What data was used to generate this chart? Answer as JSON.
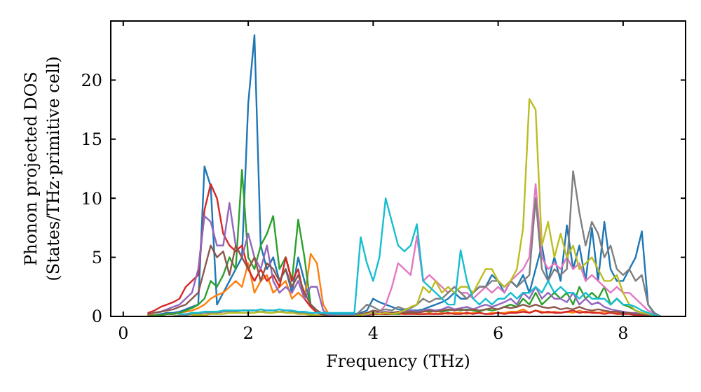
{
  "chart_data": {
    "type": "line",
    "xlabel": "Frequency (THz)",
    "ylabel": "Phonon projected DOS\n(States/THz·primitive cell)",
    "xlim": [
      -0.2,
      9
    ],
    "ylim": [
      0,
      25
    ],
    "xticks": [
      0,
      2,
      4,
      6,
      8
    ],
    "yticks": [
      0,
      5,
      10,
      15,
      20
    ],
    "grid": false,
    "line_style": "solid",
    "x": [
      0.4,
      0.5,
      0.6,
      0.7,
      0.8,
      0.9,
      1,
      1.1,
      1.2,
      1.3,
      1.4,
      1.5,
      1.6,
      1.7,
      1.8,
      1.9,
      2,
      2.1,
      2.2,
      2.3,
      2.4,
      2.5,
      2.6,
      2.7,
      2.8,
      2.9,
      3,
      3.1,
      3.2,
      3.3,
      3.4,
      3.5,
      3.6,
      3.7,
      3.8,
      3.9,
      4,
      4.1,
      4.2,
      4.3,
      4.4,
      4.5,
      4.6,
      4.7,
      4.8,
      4.9,
      5,
      5.1,
      5.2,
      5.3,
      5.4,
      5.5,
      5.6,
      5.7,
      5.8,
      5.9,
      6,
      6.1,
      6.2,
      6.3,
      6.4,
      6.5,
      6.6,
      6.7,
      6.8,
      6.9,
      7,
      7.1,
      7.2,
      7.3,
      7.4,
      7.5,
      7.6,
      7.7,
      7.8,
      7.9,
      8,
      8.1,
      8.2,
      8.3,
      8.4,
      8.5,
      8.6
    ],
    "series": [
      {
        "color": "#1f77b4",
        "values": [
          0.1,
          0.1,
          0.2,
          0.3,
          0.3,
          0.4,
          0.6,
          0.8,
          1,
          12.7,
          11,
          1,
          2,
          3,
          4,
          5,
          18,
          23.8,
          6,
          4,
          5,
          3,
          4,
          2,
          5,
          3,
          1,
          0.5,
          0.2,
          0.2,
          0.2,
          0.2,
          0.2,
          0.2,
          0.3,
          0.5,
          1.5,
          1.2,
          1,
          0.8,
          0.6,
          0.5,
          0.5,
          0.5,
          0.6,
          0.8,
          1,
          1.2,
          1.5,
          2,
          1.5,
          1.5,
          2,
          2.5,
          2.5,
          3.5,
          3,
          2,
          3,
          2.5,
          3.5,
          2,
          4,
          6,
          3,
          5,
          3,
          7.7,
          4,
          6,
          3,
          7.5,
          3,
          8,
          4,
          3,
          3,
          4,
          5,
          7.2,
          1,
          0.3,
          0
        ]
      },
      {
        "color": "#ff7f0e",
        "values": [
          0.1,
          0.1,
          0.1,
          0.2,
          0.2,
          0.3,
          0.4,
          0.5,
          0.7,
          1,
          1.5,
          1.8,
          2,
          2.5,
          3,
          2.5,
          4.5,
          2,
          3,
          3.5,
          2,
          2.5,
          3,
          1.5,
          2,
          1.5,
          5.3,
          4.5,
          1,
          0.1,
          0,
          0,
          0,
          0,
          0.1,
          0.1,
          0.2,
          0.2,
          0.2,
          0.3,
          0.2,
          0.2,
          0.3,
          0.2,
          0.2,
          0.3,
          0.2,
          0.3,
          0.2,
          0.3,
          0.3,
          0.2,
          0.3,
          0.3,
          0.2,
          0.3,
          0.3,
          0.3,
          0.4,
          0.4,
          0.6,
          0.3,
          0.5,
          0.4,
          0.3,
          0.4,
          0.3,
          0.4,
          0.3,
          0.5,
          0.3,
          0.4,
          0.3,
          0.4,
          0.3,
          0.3,
          0.2,
          null,
          null,
          null,
          null,
          null,
          null
        ]
      },
      {
        "color": "#2ca02c",
        "values": [
          0,
          0.1,
          0.1,
          0.2,
          0.2,
          0.3,
          0.5,
          0.7,
          1,
          1.5,
          3,
          2.5,
          3.5,
          5,
          4,
          12.4,
          5,
          4,
          6,
          7,
          8.5,
          4,
          5,
          3,
          8.2,
          5,
          1,
          0.5,
          0.1,
          0,
          0,
          0,
          0,
          0,
          0.1,
          0.2,
          0.3,
          0.3,
          0.2,
          0.2,
          0.2,
          0.3,
          0.3,
          0.4,
          0.5,
          0.4,
          0.5,
          0.4,
          0.5,
          0.6,
          0.5,
          0.6,
          0.5,
          0.4,
          0.6,
          0.5,
          0.6,
          0.8,
          1,
          0.8,
          1.5,
          1,
          2,
          1,
          1.5,
          2,
          1.5,
          2,
          1,
          2.5,
          1.5,
          2,
          1.5,
          2.5,
          1,
          1.5,
          1,
          0.8,
          0.5,
          0.3,
          0.2,
          0.1,
          0
        ]
      },
      {
        "color": "#d62728",
        "values": [
          0.3,
          0.5,
          0.8,
          1,
          1.2,
          1.5,
          2.5,
          3,
          3.5,
          9,
          11.2,
          10,
          7,
          6,
          5.5,
          6,
          4,
          3,
          4,
          3,
          3.5,
          2.5,
          5,
          3,
          4,
          1.5,
          0.8,
          0.3,
          0.1,
          0,
          0,
          0,
          0,
          0,
          0.1,
          0.1,
          0.2,
          0.2,
          0.2,
          0.2,
          0.3,
          0.2,
          0.2,
          0.2,
          0.2,
          0.2,
          0.2,
          0.2,
          0.3,
          0.2,
          0.2,
          0.3,
          0.2,
          0.3,
          0.2,
          0.2,
          0.3,
          0.2,
          0.3,
          0.3,
          0.4,
          0.3,
          0.5,
          0.3,
          0.4,
          0.3,
          0.3,
          0.4,
          0.5,
          0.3,
          0.4,
          0.3,
          0.3,
          0.2,
          0.3,
          0.2,
          0.2,
          0.2,
          0.1,
          0.1,
          0.1,
          0,
          0
        ]
      },
      {
        "color": "#9467bd",
        "values": [
          0.2,
          0.3,
          0.4,
          0.6,
          0.8,
          1,
          1.5,
          2,
          4,
          8.5,
          8,
          6,
          6,
          9.6,
          6,
          5,
          7,
          5,
          4,
          6,
          3,
          2,
          2.5,
          2,
          3,
          1.5,
          2.5,
          2.5,
          0.5,
          0.1,
          0,
          0,
          0,
          0,
          0,
          0.1,
          0.3,
          0.3,
          0.4,
          0.3,
          0.3,
          0.4,
          0.5,
          0.4,
          0.5,
          0.6,
          0.5,
          0.6,
          0.8,
          0.6,
          0.7,
          0.8,
          0.6,
          0.8,
          1,
          0.8,
          1,
          1.2,
          1.5,
          1,
          2,
          1.5,
          2.5,
          1.5,
          2,
          1.5,
          1.5,
          1.2,
          2,
          1,
          1.5,
          1,
          1.2,
          0.8,
          0.6,
          0.5,
          0.4,
          0.3,
          0.3,
          0.2,
          0.1,
          0,
          0
        ]
      },
      {
        "color": "#8c564b",
        "values": [
          0.2,
          0.3,
          0.4,
          0.5,
          0.6,
          0.8,
          1,
          1.5,
          2,
          4,
          6,
          5,
          5.5,
          3.5,
          6,
          5,
          4,
          5,
          3,
          4.5,
          4,
          3,
          4,
          2.5,
          3.5,
          2,
          1,
          0.5,
          0.1,
          0,
          0,
          0,
          0,
          0,
          0.2,
          0.3,
          0.5,
          0.4,
          0.3,
          0.3,
          0.4,
          0.3,
          0.4,
          0.3,
          0.4,
          0.5,
          0.4,
          0.5,
          0.6,
          0.5,
          0.6,
          0.5,
          0.6,
          0.5,
          0.6,
          0.7,
          0.6,
          0.8,
          0.7,
          0.8,
          1,
          0.8,
          1,
          0.8,
          0.7,
          0.8,
          0.6,
          0.7,
          0.6,
          0.8,
          0.6,
          0.5,
          0.6,
          0.5,
          0.4,
          0.4,
          0.3,
          0.3,
          0.2,
          0.2,
          0.1,
          0,
          0
        ]
      },
      {
        "color": "#e377c2",
        "x": [
          4.1,
          4.2,
          4.3,
          4.4,
          4.5,
          4.6,
          4.7,
          4.8,
          4.9,
          5,
          5.1,
          5.2,
          5.3,
          5.4,
          5.5,
          5.6,
          5.7,
          5.8,
          5.9,
          6,
          6.1,
          6.2,
          6.3,
          6.4,
          6.5,
          6.6,
          6.7,
          6.8,
          6.9,
          7,
          7.1,
          7.2,
          7.3,
          7.4,
          7.5,
          7.6,
          7.7,
          7.8,
          7.9,
          8,
          8.1,
          8.2,
          8.3,
          8.4,
          8.5,
          8.6
        ],
        "values": [
          0.3,
          1,
          2.5,
          4.5,
          4,
          3.5,
          6.8,
          3,
          3.5,
          3,
          2.5,
          2,
          2.5,
          2,
          2,
          1.5,
          2,
          2.5,
          2,
          2.5,
          2,
          3,
          3.5,
          4,
          5,
          11.2,
          5,
          4,
          4.5,
          4,
          5,
          4,
          4.5,
          3,
          3.5,
          3,
          2.5,
          2,
          2.5,
          2,
          2,
          1.5,
          1,
          0.5,
          0.2,
          0
        ]
      },
      {
        "color": "#7f7f7f",
        "values": [
          0,
          0,
          0,
          0,
          0,
          0.1,
          0.1,
          0.2,
          0.2,
          0.3,
          0.3,
          0.3,
          0.4,
          0.4,
          0.4,
          0.5,
          0.5,
          0.5,
          0.4,
          0.5,
          0.5,
          0.4,
          0.5,
          0.4,
          0.3,
          0.3,
          0.2,
          0.1,
          0,
          0,
          0,
          0,
          0,
          0,
          0.5,
          1,
          0.8,
          0.5,
          0.6,
          0.5,
          0.8,
          0.6,
          0.7,
          1,
          1.5,
          1.2,
          1.5,
          1.5,
          2,
          2.5,
          2,
          1.5,
          2,
          2.5,
          2.5,
          3,
          3,
          2.5,
          3,
          2.5,
          3,
          3.5,
          10,
          4,
          3,
          4,
          3.5,
          4,
          12.3,
          8.8,
          6,
          8,
          7,
          5,
          6,
          4,
          3.5,
          4,
          3,
          3.5,
          1,
          0.2,
          0
        ]
      },
      {
        "color": "#bcbd22",
        "values": [
          null,
          null,
          null,
          null,
          null,
          null,
          null,
          0.1,
          0.1,
          0.1,
          0.2,
          0.2,
          0.2,
          0.3,
          0.3,
          0.3,
          0.3,
          0.3,
          0.4,
          0.3,
          0.3,
          0.4,
          0.3,
          0.3,
          0.2,
          0.2,
          0.1,
          0.1,
          0,
          null,
          null,
          null,
          null,
          0,
          0.1,
          0.2,
          0.3,
          0.2,
          0.3,
          0.2,
          0.3,
          0.5,
          0.8,
          1,
          2.5,
          2,
          3,
          2,
          2.5,
          2,
          2.5,
          2.5,
          2,
          3,
          4,
          4,
          3,
          2.5,
          3,
          4,
          7.5,
          18.4,
          17.5,
          6,
          8,
          5,
          7,
          5,
          6,
          4,
          4.5,
          5,
          4,
          3,
          3,
          3.5,
          2,
          1,
          0.5,
          0.3,
          0.2,
          0.1,
          0
        ]
      },
      {
        "color": "#17becf",
        "values": [
          null,
          null,
          null,
          null,
          null,
          0.2,
          0.2,
          0.3,
          0.3,
          0.4,
          0.4,
          0.4,
          0.5,
          0.5,
          0.5,
          0.5,
          0.5,
          0.5,
          0.6,
          0.5,
          0.5,
          0.6,
          0.5,
          0.5,
          0.4,
          0.4,
          0.3,
          0.3,
          0.3,
          0.3,
          0.3,
          0.3,
          0.3,
          0.3,
          6.7,
          4.5,
          3,
          5,
          10,
          8,
          6,
          5.5,
          6,
          7.8,
          3,
          2.5,
          2,
          1.5,
          1,
          1,
          5.6,
          3,
          1.5,
          1,
          1.5,
          1,
          1.5,
          1.5,
          2,
          1.5,
          2,
          2,
          2.5,
          2,
          3,
          2,
          2.5,
          2,
          2,
          1.5,
          2,
          1.5,
          1.5,
          1.5,
          1,
          1.5,
          1,
          1,
          0.8,
          0.5,
          0.3,
          0.1,
          0
        ]
      }
    ]
  }
}
